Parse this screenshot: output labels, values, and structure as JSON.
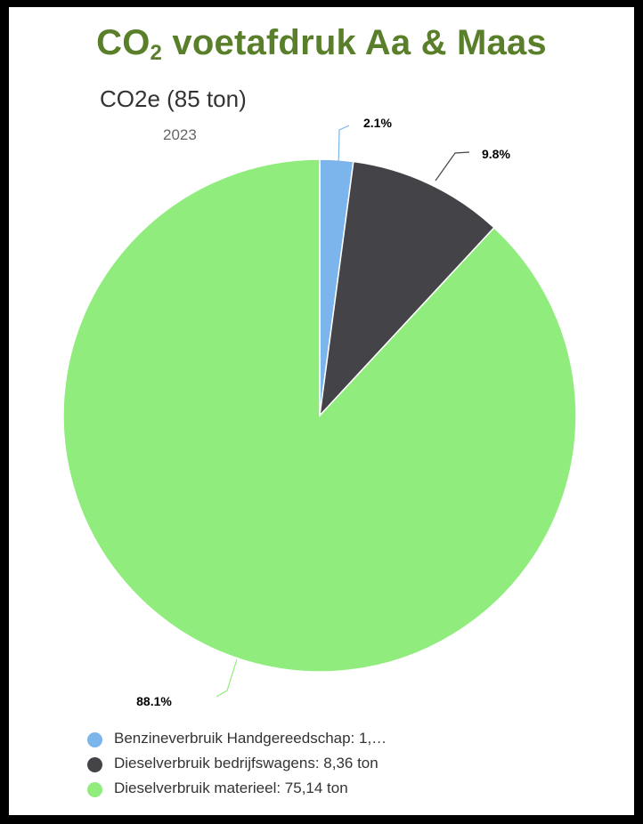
{
  "header": {
    "title_prefix": "CO",
    "title_subscript": "2",
    "title_suffix": " voetafdruk Aa & Maas"
  },
  "chart_data": {
    "type": "pie",
    "title": "CO2e (85 ton)",
    "subtitle": "2023",
    "slices": [
      {
        "label": "Benzineverbruik Handgereedschap: 1,…",
        "percent": 2.1,
        "data_label": "2.1%",
        "color": "#7cb5ec"
      },
      {
        "label": "Dieselverbruik bedrijfswagens: 8,36 ton",
        "percent": 9.8,
        "data_label": "9.8%",
        "color": "#434348"
      },
      {
        "label": "Dieselverbruik materieel: 75,14 ton",
        "percent": 88.1,
        "data_label": "88.1%",
        "color": "#90ed7d"
      }
    ],
    "legend": "bottom-left"
  }
}
